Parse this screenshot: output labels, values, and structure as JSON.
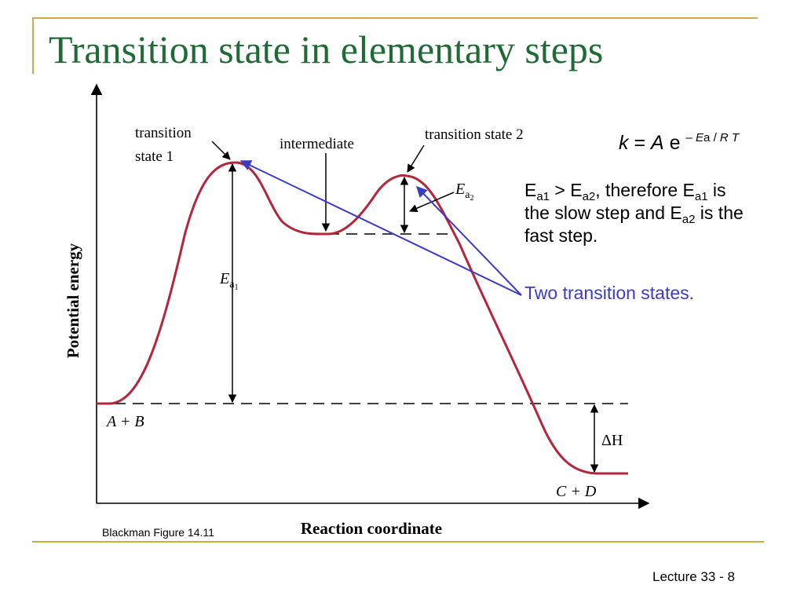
{
  "slide": {
    "title": "Transition state in elementary steps",
    "footer": "Lecture 33 - 8",
    "credit": "Blackman Figure 14.11"
  },
  "diagram": {
    "y_axis_label": "Potential energy",
    "x_axis_label": "Reaction coordinate",
    "ts1_label_line1": "transition",
    "ts1_label_line2": "state 1",
    "intermediate_label": "intermediate",
    "ts2_label": "transition state 2",
    "ea1_symbol": "E",
    "ea1_subscript": "a",
    "ea1_subsubscript": "1",
    "ea2_symbol": "E",
    "ea2_subscript": "a",
    "ea2_subsubscript": "2",
    "reactants_label": "A + B",
    "products_label": "C + D",
    "delta_h_label": "ΔH",
    "curve_color": "#b5263a",
    "pointer_color": "#3b3bc8"
  },
  "equation": {
    "k": "k",
    "equals": "=",
    "A": "A",
    "e": "e",
    "exponent_minus": "–",
    "exponent_E": "E",
    "exponent_a": "a",
    "exponent_slash": "/",
    "exponent_R": "R",
    "exponent_T": "T"
  },
  "notes": {
    "e1": "E",
    "e1_sub": "a1",
    "gt": " > E",
    "e2_sub": "a2",
    "therefore": ", therefore E",
    "e3_sub": "a1",
    "is": " is",
    "line2_start": "the slow step and E",
    "e4_sub": "a2",
    "line2_end": " is the",
    "line3": "fast step.",
    "two_transition_states": "Two transition states."
  }
}
